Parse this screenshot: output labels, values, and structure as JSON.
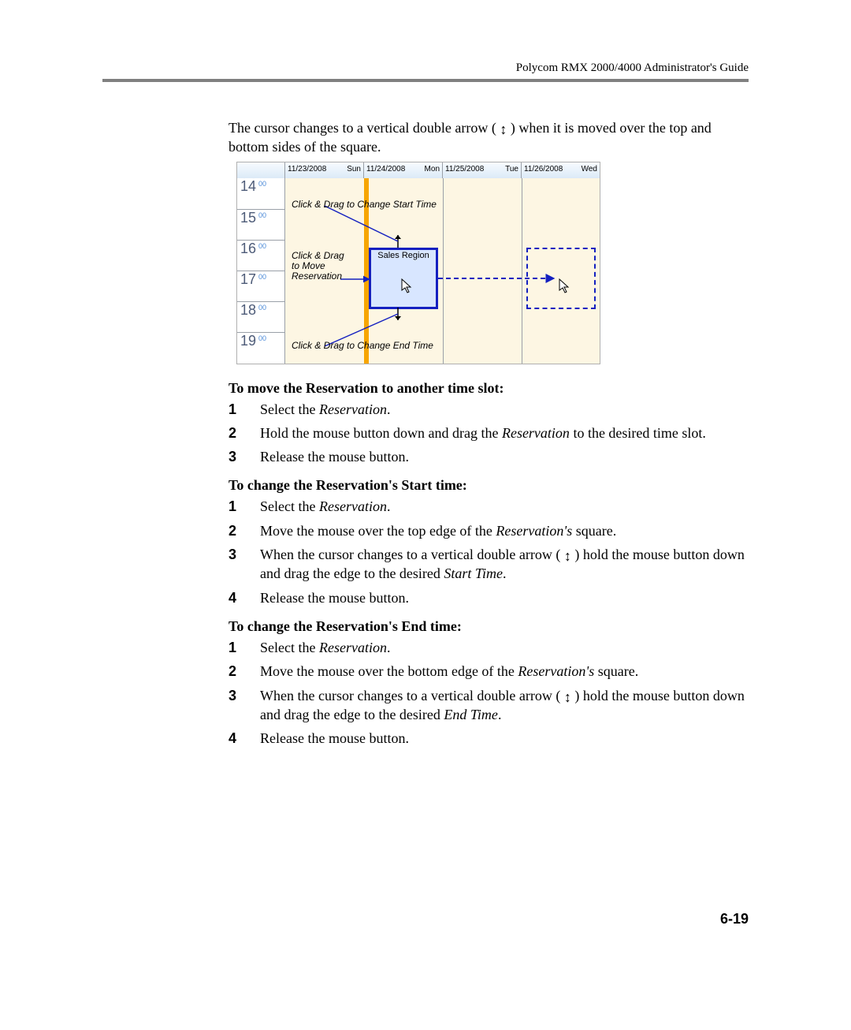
{
  "header": {
    "title": "Polycom RMX 2000/4000 Administrator's Guide"
  },
  "intro": {
    "text_a": "The cursor changes to a vertical double arrow ( ",
    "arrow": "↕",
    "text_b": " ) when it is moved over the top and bottom sides of the square."
  },
  "figure": {
    "days": [
      {
        "date": "11/23/2008",
        "dow": "Sun"
      },
      {
        "date": "11/24/2008",
        "dow": "Mon"
      },
      {
        "date": "11/25/2008",
        "dow": "Tue"
      },
      {
        "date": "11/26/2008",
        "dow": "Wed"
      }
    ],
    "hours": [
      "14",
      "15",
      "16",
      "17",
      "18",
      "19"
    ],
    "minute": "00",
    "event_label": "Sales Region",
    "annot_top": "Click & Drag to Change Start Time",
    "annot_move_a": "Click & Drag",
    "annot_move_b": "to Move",
    "annot_move_c": "Reservation",
    "annot_bottom": "Click & Drag to Change End Time",
    "colors": {
      "header_grad_top": "#f7fbff",
      "header_grad_bot": "#dceaf7",
      "grid_bg": "#fdf6e3",
      "orange": "#f7a500",
      "event_border": "#1420c0",
      "event_fill": "#d8e6ff",
      "hour_text": "#4d5b78"
    }
  },
  "sections": [
    {
      "heading": "To move the Reservation to another time slot:",
      "steps": [
        [
          {
            "t": "Select the "
          },
          {
            "t": "Reservation",
            "i": true
          },
          {
            "t": "."
          }
        ],
        [
          {
            "t": "Hold the mouse button down and drag the "
          },
          {
            "t": "Reservation",
            "i": true
          },
          {
            "t": " to the desired time slot."
          }
        ],
        [
          {
            "t": "Release the mouse button."
          }
        ]
      ]
    },
    {
      "heading": "To change the Reservation's Start time:",
      "steps": [
        [
          {
            "t": "Select the "
          },
          {
            "t": "Reservation",
            "i": true
          },
          {
            "t": "."
          }
        ],
        [
          {
            "t": "Move the mouse over the top edge of the "
          },
          {
            "t": "Reservation's",
            "i": true
          },
          {
            "t": " square."
          }
        ],
        [
          {
            "t": "When the cursor changes to a vertical double arrow ( "
          },
          {
            "arrow": true
          },
          {
            "t": " ) hold the mouse button down and drag the edge to the desired "
          },
          {
            "t": "Start Time",
            "i": true
          },
          {
            "t": "."
          }
        ],
        [
          {
            "t": "Release the mouse button."
          }
        ]
      ]
    },
    {
      "heading": "To change the Reservation's End time:",
      "steps": [
        [
          {
            "t": "Select the "
          },
          {
            "t": "Reservation",
            "i": true
          },
          {
            "t": "."
          }
        ],
        [
          {
            "t": "Move the mouse over the bottom edge of the "
          },
          {
            "t": "Reservation's",
            "i": true
          },
          {
            "t": " square."
          }
        ],
        [
          {
            "t": "When the cursor changes to a vertical double arrow ( "
          },
          {
            "arrow": true
          },
          {
            "t": " ) hold the mouse button down and drag the edge to the desired "
          },
          {
            "t": "End Time",
            "i": true
          },
          {
            "t": "."
          }
        ],
        [
          {
            "t": "Release the mouse button."
          }
        ]
      ]
    }
  ],
  "page_number": "6-19"
}
